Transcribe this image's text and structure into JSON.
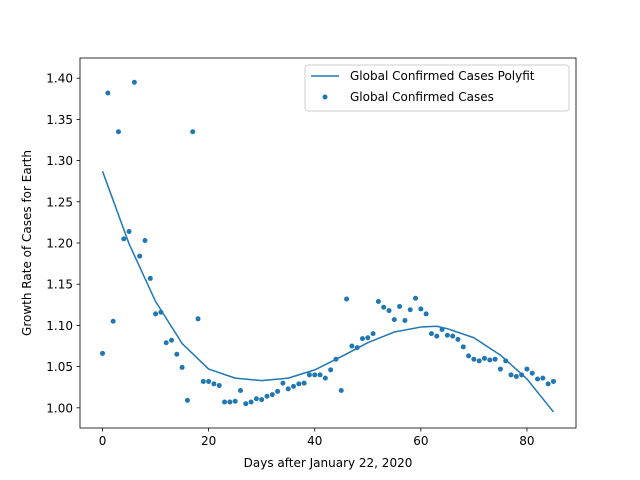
{
  "chart_data": {
    "type": "scatter",
    "title": "",
    "xlabel": "Days after January 22, 2020",
    "ylabel": "Growth Rate of Cases for Earth",
    "xlim": [
      -4.25,
      89.25
    ],
    "ylim": [
      0.9755,
      1.4245
    ],
    "xticks": [
      0,
      20,
      40,
      60,
      80
    ],
    "xtick_labels": [
      "0",
      "20",
      "40",
      "60",
      "80"
    ],
    "yticks": [
      1.0,
      1.05,
      1.1,
      1.15,
      1.2,
      1.25,
      1.3,
      1.35,
      1.4
    ],
    "ytick_labels": [
      "1.00",
      "1.05",
      "1.10",
      "1.15",
      "1.20",
      "1.25",
      "1.30",
      "1.35",
      "1.40"
    ],
    "grid": false,
    "legend_position": "upper right",
    "series": [
      {
        "name": "Global Confirmed Cases Polyfit",
        "kind": "line",
        "color": "#1f77b4",
        "x": [
          0,
          5,
          10,
          15,
          20,
          25,
          30,
          35,
          40,
          45,
          50,
          55,
          60,
          63,
          65,
          70,
          75,
          80,
          85
        ],
        "y": [
          1.287,
          1.199,
          1.129,
          1.078,
          1.047,
          1.036,
          1.033,
          1.036,
          1.046,
          1.062,
          1.079,
          1.092,
          1.098,
          1.099,
          1.096,
          1.085,
          1.064,
          1.035,
          0.995
        ]
      },
      {
        "name": "Global Confirmed Cases",
        "kind": "scatter",
        "color": "#1f77b4",
        "x": [
          0,
          1,
          2,
          3,
          4,
          5,
          6,
          7,
          8,
          9,
          10,
          11,
          12,
          13,
          14,
          15,
          16,
          17,
          18,
          19,
          20,
          21,
          22,
          23,
          24,
          25,
          26,
          27,
          28,
          29,
          30,
          31,
          32,
          33,
          34,
          35,
          36,
          37,
          38,
          39,
          40,
          41,
          42,
          43,
          44,
          45,
          46,
          47,
          48,
          49,
          50,
          51,
          52,
          53,
          54,
          55,
          56,
          57,
          58,
          59,
          60,
          61,
          62,
          63,
          64,
          65,
          66,
          67,
          68,
          69,
          70,
          71,
          72,
          73,
          74,
          75,
          76,
          77,
          78,
          79,
          80,
          81,
          82,
          83,
          84,
          85
        ],
        "y": [
          1.066,
          1.382,
          1.105,
          1.335,
          1.205,
          1.214,
          1.395,
          1.184,
          1.203,
          1.157,
          1.114,
          1.116,
          1.079,
          1.082,
          1.065,
          1.049,
          1.009,
          1.335,
          1.108,
          1.032,
          1.032,
          1.029,
          1.027,
          1.007,
          1.007,
          1.008,
          1.021,
          1.005,
          1.007,
          1.011,
          1.01,
          1.014,
          1.016,
          1.02,
          1.03,
          1.023,
          1.026,
          1.029,
          1.03,
          1.04,
          1.04,
          1.04,
          1.036,
          1.046,
          1.059,
          1.021,
          1.132,
          1.075,
          1.073,
          1.084,
          1.085,
          1.09,
          1.129,
          1.122,
          1.118,
          1.107,
          1.123,
          1.106,
          1.119,
          1.133,
          1.12,
          1.114,
          1.09,
          1.087,
          1.095,
          1.088,
          1.087,
          1.083,
          1.074,
          1.063,
          1.059,
          1.057,
          1.06,
          1.058,
          1.059,
          1.047,
          1.057,
          1.04,
          1.038,
          1.04,
          1.047,
          1.042,
          1.035,
          1.036,
          1.029,
          1.032
        ]
      }
    ]
  }
}
